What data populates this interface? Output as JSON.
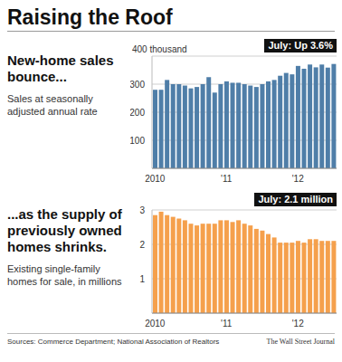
{
  "header": {
    "title": "Raising the Roof"
  },
  "chart_data": [
    {
      "type": "bar",
      "title": "New-home sales bounce...",
      "subtitle": "Sales at seasonally adjusted annual rate",
      "annotation": "July: Up 3.6%",
      "categories": [
        "2010",
        null,
        null,
        null,
        null,
        null,
        null,
        null,
        null,
        null,
        null,
        null,
        "'11",
        null,
        null,
        null,
        null,
        null,
        null,
        null,
        null,
        null,
        null,
        null,
        "'12",
        null,
        null,
        null,
        null,
        null,
        null
      ],
      "values": [
        280,
        280,
        315,
        300,
        300,
        295,
        285,
        290,
        300,
        325,
        270,
        300,
        310,
        305,
        305,
        300,
        295,
        290,
        300,
        310,
        315,
        330,
        340,
        335,
        365,
        355,
        370,
        360,
        370,
        359,
        372
      ],
      "color": "#4f7ea8",
      "ylim": [
        0,
        400
      ],
      "yticks": [
        100,
        200,
        300,
        {
          "value": 400,
          "label": "400 thousand"
        }
      ],
      "grid": true
    },
    {
      "type": "bar",
      "title": "...as the supply of previously owned homes shrinks.",
      "subtitle": "Existing single-family homes for sale, in millions",
      "annotation": "July: 2.1 million",
      "categories": [
        "2010",
        null,
        null,
        null,
        null,
        null,
        null,
        null,
        null,
        null,
        null,
        null,
        "'11",
        null,
        null,
        null,
        null,
        null,
        null,
        null,
        null,
        null,
        null,
        null,
        "'12",
        null,
        null,
        null,
        null,
        null,
        null
      ],
      "values": [
        2.85,
        2.95,
        2.85,
        2.8,
        2.75,
        2.7,
        2.6,
        2.55,
        2.6,
        2.6,
        2.6,
        2.7,
        2.7,
        2.65,
        2.7,
        2.6,
        2.55,
        2.45,
        2.4,
        2.3,
        2.2,
        2.05,
        2.05,
        2.05,
        2.1,
        2.05,
        2.15,
        2.15,
        2.1,
        2.1,
        2.1
      ],
      "color": "#f5a04c",
      "ylim": [
        0,
        3
      ],
      "yticks": [
        1,
        2,
        3
      ],
      "grid": true
    }
  ],
  "footer": {
    "source": "Sources: Commerce Department; National Association of Realtors",
    "credit": "The Wall Street Journal"
  }
}
